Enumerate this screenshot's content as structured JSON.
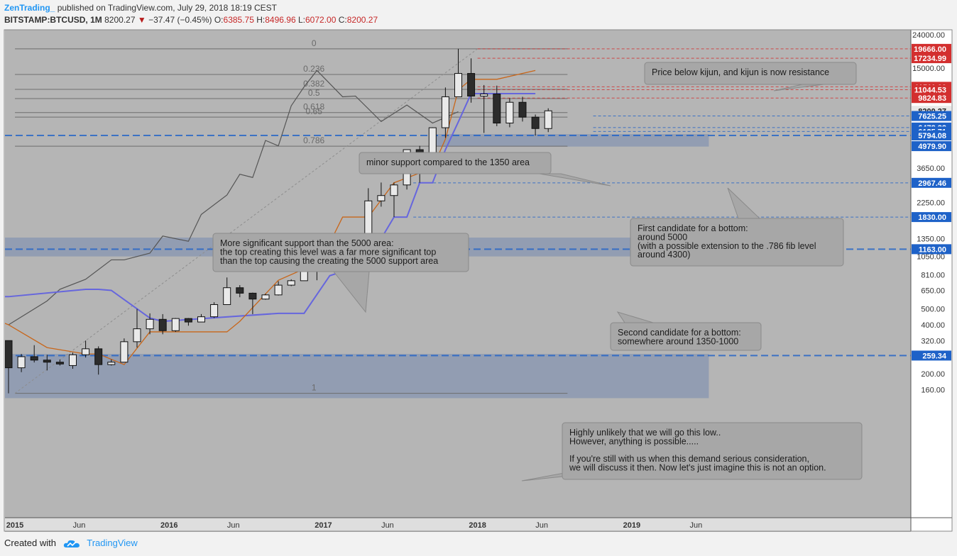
{
  "header": {
    "author": "ZenTrading_",
    "published": "published on TradingView.com, July 29, 2018 18:19 CEST",
    "symbol": "BITSTAMP:BTCUSD, 1M",
    "last": "8200.27",
    "change": "−37.47 (−0.45%)",
    "o_label": "O:",
    "o": "6385.75",
    "h_label": "H:",
    "h": "8496.96",
    "l_label": "L:",
    "l": "6072.00",
    "c_label": "C:",
    "c": "8200.27"
  },
  "footer": {
    "created_with": "Created with",
    "brand": "TradingView"
  },
  "colors": {
    "background": "#b5b5b5",
    "up_candle": "#e9e9e9",
    "down_candle": "#2c2c2c",
    "kijun": "#6666dd",
    "tenkan": "#c8661a",
    "red_level": "#d32f2f",
    "blue_level": "#1e62c8",
    "zone": "#8796b2",
    "comparison_line": "#555555"
  },
  "chart_data": {
    "type": "candlestick",
    "scale": "log",
    "price_axis": [
      "24000.00",
      "15000.00",
      "6000.00",
      "3650.00",
      "2250.00",
      "1350.00",
      "1050.00",
      "810.00",
      "650.00",
      "500.00",
      "400.00",
      "320.00",
      "200.00",
      "160.00"
    ],
    "time_axis": [
      {
        "label": "Jun",
        "t": -2.5,
        "bold": false
      },
      {
        "label": "2015",
        "t": 0.5,
        "bold": true
      },
      {
        "label": "Jun",
        "t": 5.5,
        "bold": false
      },
      {
        "label": "2016",
        "t": 12.5,
        "bold": true
      },
      {
        "label": "Jun",
        "t": 17.5,
        "bold": false
      },
      {
        "label": "2017",
        "t": 24.5,
        "bold": true
      },
      {
        "label": "Jun",
        "t": 29.5,
        "bold": false
      },
      {
        "label": "2018",
        "t": 36.5,
        "bold": true
      },
      {
        "label": "Jun",
        "t": 41.5,
        "bold": false
      },
      {
        "label": "2019",
        "t": 48.5,
        "bold": true
      },
      {
        "label": "Jun",
        "t": 53.5,
        "bold": false
      }
    ],
    "candles": [
      {
        "d": "2014-01",
        "o": 600,
        "h": 1000,
        "l": 410,
        "c": 850
      },
      {
        "d": "2014-02",
        "o": 560,
        "h": 720,
        "l": 540,
        "c": 560
      },
      {
        "d": "2014-03",
        "o": 560,
        "h": 720,
        "l": 360,
        "c": 445
      },
      {
        "d": "2014-04",
        "o": 445,
        "h": 580,
        "l": 345,
        "c": 440
      },
      {
        "d": "2014-05",
        "o": 450,
        "h": 620,
        "l": 440,
        "c": 620
      },
      {
        "d": "2014-06",
        "o": 680,
        "h": 690,
        "l": 560,
        "c": 640
      },
      {
        "d": "2014-07",
        "o": 640,
        "h": 660,
        "l": 560,
        "c": 590
      },
      {
        "d": "2014-08",
        "o": 590,
        "h": 610,
        "l": 450,
        "c": 480
      },
      {
        "d": "2014-09",
        "o": 480,
        "h": 500,
        "l": 360,
        "c": 390
      },
      {
        "d": "2014-10",
        "o": 390,
        "h": 420,
        "l": 285,
        "c": 340
      },
      {
        "d": "2014-11",
        "o": 340,
        "h": 460,
        "l": 320,
        "c": 380
      },
      {
        "d": "2014-12",
        "o": 380,
        "h": 410,
        "l": 305,
        "c": 320
      },
      {
        "d": "2015-01",
        "o": 320,
        "h": 320,
        "l": 152,
        "c": 218
      },
      {
        "d": "2015-02",
        "o": 218,
        "h": 265,
        "l": 205,
        "c": 255
      },
      {
        "d": "2015-03",
        "o": 255,
        "h": 300,
        "l": 235,
        "c": 243
      },
      {
        "d": "2015-04",
        "o": 243,
        "h": 262,
        "l": 210,
        "c": 236
      },
      {
        "d": "2015-05",
        "o": 236,
        "h": 245,
        "l": 225,
        "c": 230
      },
      {
        "d": "2015-06",
        "o": 225,
        "h": 270,
        "l": 215,
        "c": 262
      },
      {
        "d": "2015-07",
        "o": 262,
        "h": 320,
        "l": 252,
        "c": 285
      },
      {
        "d": "2015-08",
        "o": 285,
        "h": 295,
        "l": 198,
        "c": 228
      },
      {
        "d": "2015-09",
        "o": 228,
        "h": 245,
        "l": 225,
        "c": 236
      },
      {
        "d": "2015-10",
        "o": 236,
        "h": 330,
        "l": 236,
        "c": 315
      },
      {
        "d": "2015-11",
        "o": 315,
        "h": 500,
        "l": 290,
        "c": 378
      },
      {
        "d": "2015-12",
        "o": 378,
        "h": 470,
        "l": 350,
        "c": 432
      },
      {
        "d": "2016-01",
        "o": 432,
        "h": 465,
        "l": 350,
        "c": 368
      },
      {
        "d": "2016-02",
        "o": 368,
        "h": 440,
        "l": 362,
        "c": 437
      },
      {
        "d": "2016-03",
        "o": 437,
        "h": 440,
        "l": 395,
        "c": 416
      },
      {
        "d": "2016-04",
        "o": 416,
        "h": 465,
        "l": 415,
        "c": 448
      },
      {
        "d": "2016-05",
        "o": 448,
        "h": 550,
        "l": 440,
        "c": 532
      },
      {
        "d": "2016-06",
        "o": 532,
        "h": 780,
        "l": 530,
        "c": 675
      },
      {
        "d": "2016-07",
        "o": 675,
        "h": 700,
        "l": 590,
        "c": 625
      },
      {
        "d": "2016-08",
        "o": 625,
        "h": 630,
        "l": 465,
        "c": 575
      },
      {
        "d": "2016-09",
        "o": 575,
        "h": 620,
        "l": 570,
        "c": 610
      },
      {
        "d": "2016-10",
        "o": 610,
        "h": 740,
        "l": 605,
        "c": 700
      },
      {
        "d": "2016-11",
        "o": 700,
        "h": 760,
        "l": 690,
        "c": 745
      },
      {
        "d": "2016-12",
        "o": 745,
        "h": 970,
        "l": 745,
        "c": 965
      },
      {
        "d": "2017-01",
        "o": 965,
        "h": 1160,
        "l": 750,
        "c": 970
      },
      {
        "d": "2017-02",
        "o": 970,
        "h": 1200,
        "l": 915,
        "c": 1190
      },
      {
        "d": "2017-03",
        "o": 1190,
        "h": 1330,
        "l": 890,
        "c": 1080
      },
      {
        "d": "2017-04",
        "o": 1080,
        "h": 1350,
        "l": 1080,
        "c": 1350
      },
      {
        "d": "2017-05",
        "o": 1350,
        "h": 2750,
        "l": 1350,
        "c": 2300
      },
      {
        "d": "2017-06",
        "o": 2300,
        "h": 2980,
        "l": 2120,
        "c": 2480
      },
      {
        "d": "2017-07",
        "o": 2480,
        "h": 2980,
        "l": 1830,
        "c": 2880
      },
      {
        "d": "2017-08",
        "o": 2880,
        "h": 4750,
        "l": 2700,
        "c": 4740
      },
      {
        "d": "2017-09",
        "o": 4740,
        "h": 5000,
        "l": 2970,
        "c": 4340
      },
      {
        "d": "2017-10",
        "o": 4340,
        "h": 6500,
        "l": 4100,
        "c": 6460
      },
      {
        "d": "2017-11",
        "o": 6460,
        "h": 11400,
        "l": 5600,
        "c": 10000
      },
      {
        "d": "2017-12",
        "o": 10000,
        "h": 19666,
        "l": 10000,
        "c": 13900
      },
      {
        "d": "2018-01",
        "o": 13900,
        "h": 17200,
        "l": 9200,
        "c": 10100
      },
      {
        "d": "2018-02",
        "o": 10100,
        "h": 11800,
        "l": 6000,
        "c": 10400
      },
      {
        "d": "2018-03",
        "o": 10400,
        "h": 11700,
        "l": 6600,
        "c": 6900
      },
      {
        "d": "2018-04",
        "o": 6900,
        "h": 9800,
        "l": 6500,
        "c": 9250
      },
      {
        "d": "2018-05",
        "o": 9250,
        "h": 9990,
        "l": 7050,
        "c": 7500
      },
      {
        "d": "2018-06",
        "o": 7500,
        "h": 7780,
        "l": 5780,
        "c": 6385
      },
      {
        "d": "2018-07",
        "o": 6385,
        "h": 8497,
        "l": 6072,
        "c": 8200
      }
    ],
    "kijun": [
      [
        0,
        595
      ],
      [
        12,
        595
      ],
      [
        18,
        660
      ],
      [
        19,
        660
      ],
      [
        20,
        650
      ],
      [
        23,
        440
      ],
      [
        24,
        420
      ],
      [
        33,
        470
      ],
      [
        35,
        470
      ],
      [
        37,
        800
      ],
      [
        39,
        900
      ],
      [
        40,
        1350
      ],
      [
        41,
        1350
      ],
      [
        42,
        1830
      ],
      [
        43,
        1830
      ],
      [
        44,
        2970
      ],
      [
        45,
        2970
      ],
      [
        46,
        4740
      ],
      [
        47,
        7000
      ],
      [
        48,
        10450
      ],
      [
        53,
        10450
      ]
    ],
    "tenkan": [
      [
        0,
        630
      ],
      [
        4,
        630
      ],
      [
        7,
        700
      ],
      [
        9,
        500
      ],
      [
        12,
        400
      ],
      [
        15,
        290
      ],
      [
        18,
        265
      ],
      [
        19,
        265
      ],
      [
        21,
        228
      ],
      [
        23,
        362
      ],
      [
        27,
        362
      ],
      [
        29,
        362
      ],
      [
        30,
        420
      ],
      [
        33,
        750
      ],
      [
        35,
        880
      ],
      [
        36,
        880
      ],
      [
        38,
        1830
      ],
      [
        40,
        1830
      ],
      [
        42,
        2970
      ],
      [
        45,
        3650
      ],
      [
        46,
        5500
      ],
      [
        47,
        11000
      ],
      [
        48,
        12800
      ],
      [
        50,
        12800
      ],
      [
        53,
        14500
      ]
    ],
    "comparison_line": [
      [
        0,
        400
      ],
      [
        3,
        560
      ],
      [
        4,
        660
      ],
      [
        6,
        760
      ],
      [
        8,
        1000
      ],
      [
        9,
        1000
      ],
      [
        11,
        1100
      ],
      [
        12,
        1400
      ],
      [
        14,
        1300
      ],
      [
        15,
        1900
      ],
      [
        17,
        2500
      ],
      [
        18,
        3350
      ],
      [
        19,
        3200
      ],
      [
        20,
        5400
      ],
      [
        21,
        5000
      ],
      [
        22,
        8800
      ],
      [
        23,
        11500
      ],
      [
        24,
        14500
      ],
      [
        26,
        10000
      ],
      [
        27,
        10100
      ],
      [
        29,
        7050
      ],
      [
        31,
        8900
      ],
      [
        33,
        6900
      ],
      [
        35,
        8100
      ]
    ],
    "fib_levels": [
      {
        "label": "0",
        "price": 19666
      },
      {
        "label": "0.236",
        "price": 13700
      },
      {
        "label": "0.382",
        "price": 11100
      },
      {
        "label": "0.5",
        "price": 9750
      },
      {
        "label": "0.618",
        "price": 8000
      },
      {
        "label": "0.65",
        "price": 7500
      },
      {
        "label": "0.786",
        "price": 4980
      },
      {
        "label": "1",
        "price": 152
      }
    ],
    "price_labels": [
      {
        "text": "19666.00",
        "price": 19666,
        "bg": "#d32f2f",
        "line": "red"
      },
      {
        "text": "17234.99",
        "price": 17235,
        "bg": "#d32f2f",
        "line": "red"
      },
      {
        "text": "11511.00",
        "price": 11511,
        "bg": "#d32f2f",
        "line": "red"
      },
      {
        "text": "11044.53",
        "price": 11045,
        "bg": "#d32f2f",
        "line": "red"
      },
      {
        "text": "9824.83",
        "price": 9825,
        "bg": "#d32f2f",
        "line": "red"
      },
      {
        "text": "8200.27",
        "price": 8200,
        "bg": "#e8e8e8",
        "line": "none"
      },
      {
        "text": "7625.25",
        "price": 7625,
        "bg": "#1e62c8",
        "line": "blue"
      },
      {
        "text": "6478.32",
        "price": 6478,
        "bg": "#1e62c8",
        "line": "blue"
      },
      {
        "text": "6125.71",
        "price": 6126,
        "bg": "#1e62c8",
        "line": "blue"
      },
      {
        "text": "5794.08",
        "price": 5794,
        "bg": "#1e62c8",
        "line": "blue-thick"
      },
      {
        "text": "4979.90",
        "price": 4980,
        "bg": "#1e62c8",
        "line": "none"
      },
      {
        "text": "2967.46",
        "price": 2967,
        "bg": "#1e62c8",
        "line": "blue"
      },
      {
        "text": "1830.00",
        "price": 1830,
        "bg": "#1e62c8",
        "line": "blue"
      },
      {
        "text": "1163.00",
        "price": 1163,
        "bg": "#1e62c8",
        "line": "blue-thick"
      },
      {
        "text": "259.34",
        "price": 259,
        "bg": "#1e62c8",
        "line": "blue-thick"
      }
    ],
    "zones": [
      {
        "from": 4950,
        "to": 5900,
        "t0": 32.8,
        "t1": 54.5
      },
      {
        "from": 1050,
        "to": 1370,
        "t0": -12.5,
        "t1": 54.5
      },
      {
        "from": 142,
        "to": 265,
        "t0": -12.5,
        "t1": 54.5
      }
    ],
    "annotations": [
      {
        "lines": [
          "Price below kijun, and kijun is now resistance"
        ]
      },
      {
        "lines": [
          "minor support compared to the 1350 area"
        ]
      },
      {
        "lines": [
          "First candidate for a bottom:",
          "around 5000",
          "(with a possible extension to the .786 fib level",
          "around 4300)"
        ]
      },
      {
        "lines": [
          "More significant support than the 5000 area:",
          "the top creating this level was a far more significant top",
          "than the top causing the creating the 5000 support area"
        ]
      },
      {
        "lines": [
          "Second candidate for a bottom:",
          "somewhere around 1350-1000"
        ]
      },
      {
        "lines": [
          "Highly unlikely that we will go this low..",
          "However, anything is possible.....",
          "",
          "If you're still with us when this demand serious consideration,",
          "we will discuss it then. Now let's just imagine this is not an option."
        ]
      }
    ]
  }
}
